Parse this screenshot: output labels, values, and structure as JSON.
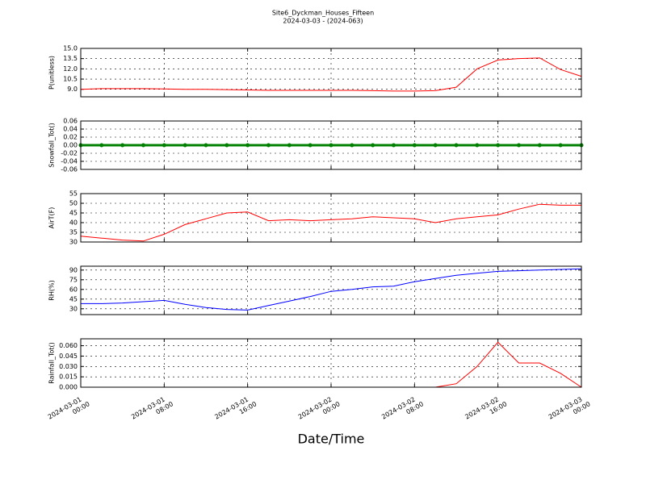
{
  "title": "Site6_Dyckman_Houses_Fifteen",
  "subtitle": "2024-03-03 - (2024-063)",
  "chart_data": [
    {
      "type": "line",
      "ylabel": "P(unitless)",
      "ylim": [
        7.9,
        15
      ],
      "yticks": [
        {
          "value": 9,
          "label": "9.0"
        },
        10.5,
        {
          "value": 12,
          "label": "12.0"
        },
        13.5,
        {
          "value": 15,
          "label": "15.0"
        }
      ],
      "grid": true,
      "xlim": [
        "2024-03-01 00:00",
        "2024-03-03 00:00"
      ],
      "xticks": [
        "2024-03-01 00:00",
        "2024-03-01 08:00",
        "2024-03-01 16:00",
        "2024-03-02 00:00",
        "2024-03-02 08:00",
        "2024-03-02 16:00",
        "2024-03-03 00:00"
      ],
      "x": [
        "2024-03-01 00:00",
        "2024-03-01 02:00",
        "2024-03-01 04:00",
        "2024-03-01 06:00",
        "2024-03-01 08:00",
        "2024-03-01 10:00",
        "2024-03-01 12:00",
        "2024-03-01 14:00",
        "2024-03-01 16:00",
        "2024-03-01 18:00",
        "2024-03-01 20:00",
        "2024-03-01 22:00",
        "2024-03-02 00:00",
        "2024-03-02 02:00",
        "2024-03-02 04:00",
        "2024-03-02 06:00",
        "2024-03-02 08:00",
        "2024-03-02 10:00",
        "2024-03-02 12:00",
        "2024-03-02 14:00",
        "2024-03-02 16:00",
        "2024-03-02 18:00",
        "2024-03-02 20:00",
        "2024-03-02 22:00",
        "2024-03-03 00:00"
      ],
      "series": [
        {
          "color": "#ff0000",
          "values": [
            9.0,
            9.1,
            9.1,
            9.1,
            9.05,
            9.0,
            9.0,
            8.95,
            8.9,
            8.85,
            8.85,
            8.85,
            8.85,
            8.85,
            8.8,
            8.75,
            8.75,
            8.8,
            9.3,
            12.0,
            13.3,
            13.5,
            13.6,
            11.9,
            10.9
          ]
        }
      ]
    },
    {
      "type": "line",
      "ylabel": "Snowfall_Tot()",
      "ylim": [
        -0.06,
        0.06
      ],
      "yticks": [
        -0.06,
        -0.04,
        -0.02,
        {
          "value": 0,
          "label": "0.00"
        },
        0.02,
        0.04,
        0.06
      ],
      "grid": true,
      "xlim": [
        "2024-03-01 00:00",
        "2024-03-03 00:00"
      ],
      "xticks": [
        "2024-03-01 00:00",
        "2024-03-01 08:00",
        "2024-03-01 16:00",
        "2024-03-02 00:00",
        "2024-03-02 08:00",
        "2024-03-02 16:00",
        "2024-03-03 00:00"
      ],
      "x": [
        "2024-03-01 00:00",
        "2024-03-01 02:00",
        "2024-03-01 04:00",
        "2024-03-01 06:00",
        "2024-03-01 08:00",
        "2024-03-01 10:00",
        "2024-03-01 12:00",
        "2024-03-01 14:00",
        "2024-03-01 16:00",
        "2024-03-01 18:00",
        "2024-03-01 20:00",
        "2024-03-01 22:00",
        "2024-03-02 00:00",
        "2024-03-02 02:00",
        "2024-03-02 04:00",
        "2024-03-02 06:00",
        "2024-03-02 08:00",
        "2024-03-02 10:00",
        "2024-03-02 12:00",
        "2024-03-02 14:00",
        "2024-03-02 16:00",
        "2024-03-02 18:00",
        "2024-03-02 20:00",
        "2024-03-02 22:00",
        "2024-03-03 00:00"
      ],
      "series": [
        {
          "color": "#008000",
          "marker": "o",
          "values": [
            0,
            0,
            0,
            0,
            0,
            0,
            0,
            0,
            0,
            0,
            0,
            0,
            0,
            0,
            0,
            0,
            0,
            0,
            0,
            0,
            0,
            0,
            0,
            0,
            0
          ]
        }
      ]
    },
    {
      "type": "line",
      "ylabel": "AirT(F)",
      "ylim": [
        30,
        55
      ],
      "yticks": [
        30,
        35,
        40,
        45,
        50,
        55
      ],
      "grid": true,
      "xlim": [
        "2024-03-01 00:00",
        "2024-03-03 00:00"
      ],
      "xticks": [
        "2024-03-01 00:00",
        "2024-03-01 08:00",
        "2024-03-01 16:00",
        "2024-03-02 00:00",
        "2024-03-02 08:00",
        "2024-03-02 16:00",
        "2024-03-03 00:00"
      ],
      "x": [
        "2024-03-01 00:00",
        "2024-03-01 02:00",
        "2024-03-01 04:00",
        "2024-03-01 06:00",
        "2024-03-01 08:00",
        "2024-03-01 10:00",
        "2024-03-01 12:00",
        "2024-03-01 14:00",
        "2024-03-01 16:00",
        "2024-03-01 18:00",
        "2024-03-01 20:00",
        "2024-03-01 22:00",
        "2024-03-02 00:00",
        "2024-03-02 02:00",
        "2024-03-02 04:00",
        "2024-03-02 06:00",
        "2024-03-02 08:00",
        "2024-03-02 10:00",
        "2024-03-02 12:00",
        "2024-03-02 14:00",
        "2024-03-02 16:00",
        "2024-03-02 18:00",
        "2024-03-02 20:00",
        "2024-03-02 22:00",
        "2024-03-03 00:00"
      ],
      "series": [
        {
          "color": "#ff0000",
          "values": [
            33,
            32,
            31,
            30.5,
            34,
            39,
            42,
            45,
            45.5,
            41,
            41.5,
            41,
            41.5,
            42,
            43,
            42.5,
            42,
            40,
            42,
            43,
            44,
            47,
            49.5,
            49,
            49
          ]
        }
      ]
    },
    {
      "type": "line",
      "ylabel": "RH(%)",
      "ylim": [
        21,
        96
      ],
      "yticks": [
        30,
        45,
        60,
        75,
        90
      ],
      "grid": true,
      "xlim": [
        "2024-03-01 00:00",
        "2024-03-03 00:00"
      ],
      "xticks": [
        "2024-03-01 00:00",
        "2024-03-01 08:00",
        "2024-03-01 16:00",
        "2024-03-02 00:00",
        "2024-03-02 08:00",
        "2024-03-02 16:00",
        "2024-03-03 00:00"
      ],
      "x": [
        "2024-03-01 00:00",
        "2024-03-01 02:00",
        "2024-03-01 04:00",
        "2024-03-01 06:00",
        "2024-03-01 08:00",
        "2024-03-01 10:00",
        "2024-03-01 12:00",
        "2024-03-01 14:00",
        "2024-03-01 16:00",
        "2024-03-01 18:00",
        "2024-03-01 20:00",
        "2024-03-01 22:00",
        "2024-03-02 00:00",
        "2024-03-02 02:00",
        "2024-03-02 04:00",
        "2024-03-02 06:00",
        "2024-03-02 08:00",
        "2024-03-02 10:00",
        "2024-03-02 12:00",
        "2024-03-02 14:00",
        "2024-03-02 16:00",
        "2024-03-02 18:00",
        "2024-03-02 20:00",
        "2024-03-02 22:00",
        "2024-03-03 00:00"
      ],
      "series": [
        {
          "color": "#0000ff",
          "values": [
            38,
            38,
            39,
            41,
            43,
            37,
            32,
            29,
            28,
            35,
            42,
            49,
            57,
            60,
            64,
            65,
            72,
            77,
            82,
            85,
            88,
            89,
            90,
            91,
            92
          ]
        }
      ]
    },
    {
      "type": "line",
      "ylabel": "Rainfall_Tot()",
      "ylim": [
        0,
        0.07
      ],
      "yticks": [
        {
          "value": 0,
          "label": "0.000"
        },
        0.015,
        {
          "value": 0.03,
          "label": "0.030"
        },
        0.045,
        {
          "value": 0.06,
          "label": "0.060"
        }
      ],
      "grid": true,
      "xlabel": "Date/Time",
      "xlim": [
        "2024-03-01 00:00",
        "2024-03-03 00:00"
      ],
      "xticks": [
        "2024-03-01 00:00",
        "2024-03-01 08:00",
        "2024-03-01 16:00",
        "2024-03-02 00:00",
        "2024-03-02 08:00",
        "2024-03-02 16:00",
        "2024-03-03 00:00"
      ],
      "x": [
        "2024-03-01 00:00",
        "2024-03-01 02:00",
        "2024-03-01 04:00",
        "2024-03-01 06:00",
        "2024-03-01 08:00",
        "2024-03-01 10:00",
        "2024-03-01 12:00",
        "2024-03-01 14:00",
        "2024-03-01 16:00",
        "2024-03-01 18:00",
        "2024-03-01 20:00",
        "2024-03-01 22:00",
        "2024-03-02 00:00",
        "2024-03-02 02:00",
        "2024-03-02 04:00",
        "2024-03-02 06:00",
        "2024-03-02 08:00",
        "2024-03-02 10:00",
        "2024-03-02 12:00",
        "2024-03-02 14:00",
        "2024-03-02 16:00",
        "2024-03-02 18:00",
        "2024-03-02 20:00",
        "2024-03-02 22:00",
        "2024-03-03 00:00"
      ],
      "series": [
        {
          "color": "#ff0000",
          "values": [
            0,
            0,
            0,
            0,
            0,
            0,
            0,
            0,
            0,
            0,
            0,
            0,
            0,
            0,
            0,
            0,
            0,
            0,
            0.005,
            0.03,
            0.065,
            0.035,
            0.035,
            0.02,
            0
          ]
        }
      ]
    }
  ]
}
